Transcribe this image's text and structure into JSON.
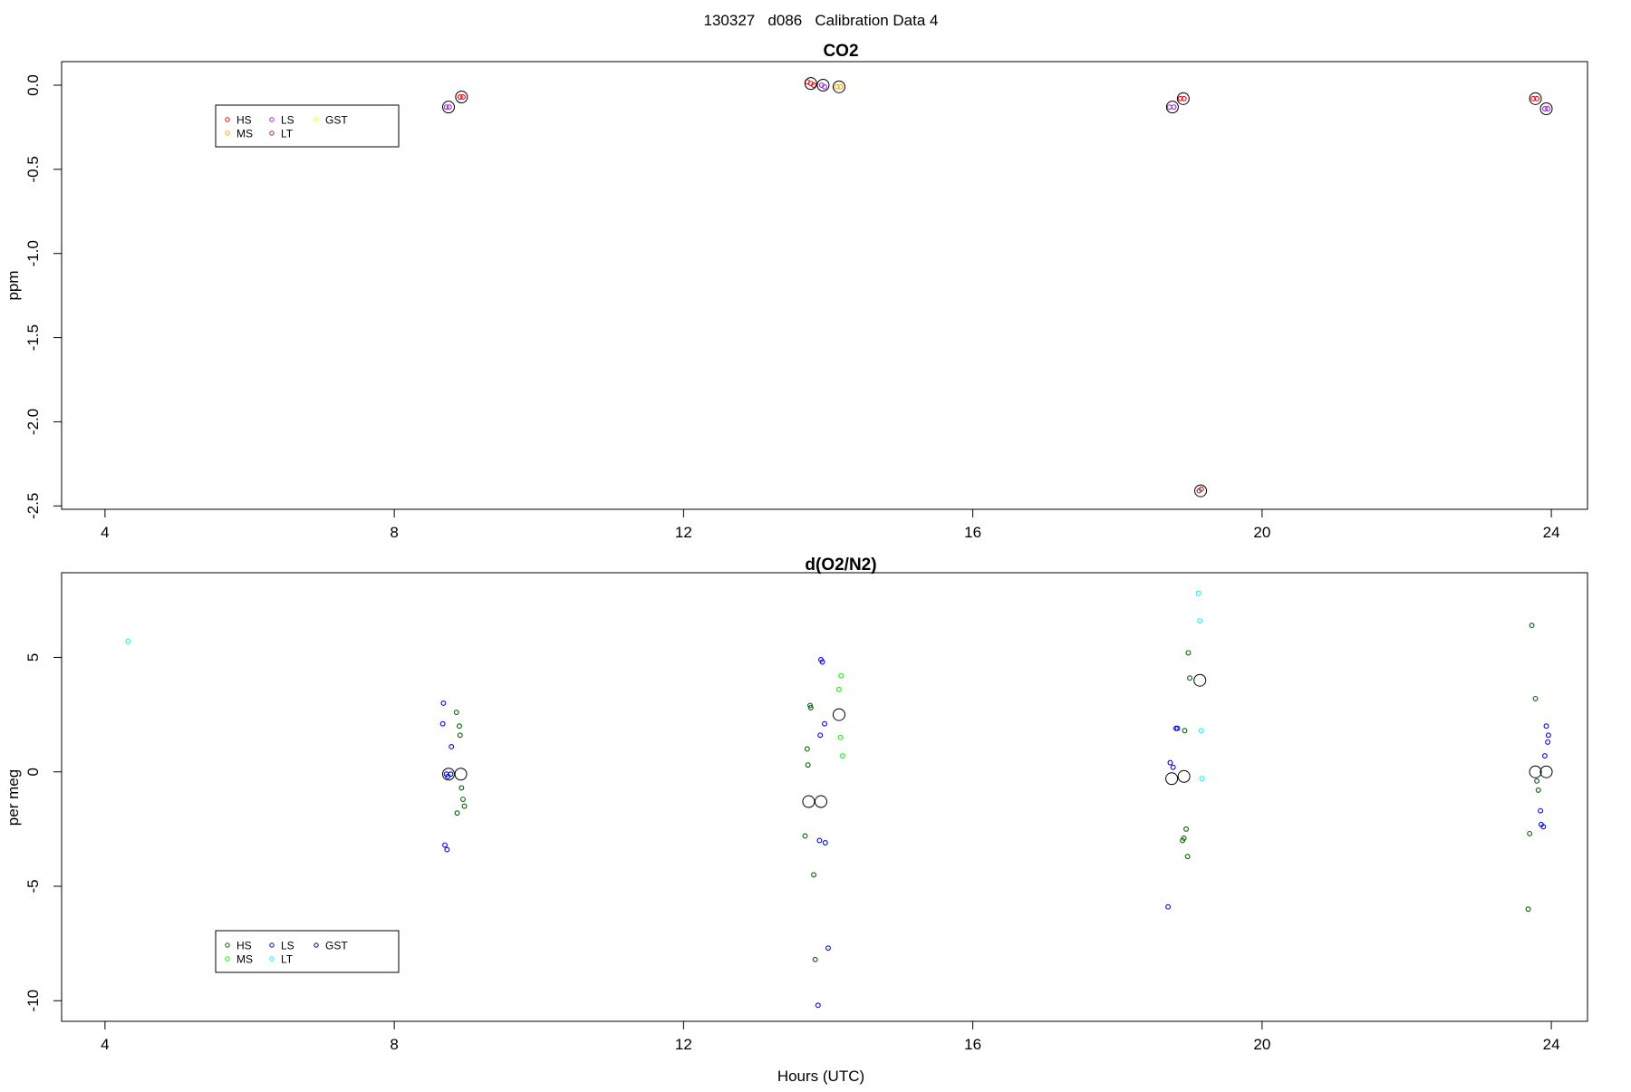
{
  "figure_title": "130327   d086   Calibration Data 4",
  "xlabel": "Hours (UTC)",
  "chart_data": [
    {
      "type": "scatter",
      "title": "CO2",
      "xlabel": "",
      "ylabel": "ppm",
      "xlim": [
        3.4,
        24.5
      ],
      "ylim": [
        -2.52,
        0.14
      ],
      "xticks": [
        4,
        8,
        12,
        16,
        20,
        24
      ],
      "yticks": [
        0.0,
        -0.5,
        -1.0,
        -1.5,
        -2.0,
        -2.5
      ],
      "ytick_labels": [
        "0.0",
        "-0.5",
        "-1.0",
        "-1.5",
        "-2.0",
        "-2.5"
      ],
      "legend_position": "top-left",
      "series": [
        {
          "name": "HS",
          "color": "#ff0000",
          "points": [
            [
              8.91,
              -0.07
            ],
            [
              8.95,
              -0.07
            ],
            [
              13.71,
              0.02
            ],
            [
              13.76,
              0.01
            ],
            [
              13.8,
              0.0
            ],
            [
              18.87,
              -0.08
            ],
            [
              18.92,
              -0.08
            ],
            [
              23.75,
              -0.08
            ],
            [
              23.8,
              -0.08
            ]
          ]
        },
        {
          "name": "MS",
          "color": "#ffa500",
          "points": [
            [
              14.12,
              -0.01
            ],
            [
              14.17,
              -0.01
            ]
          ]
        },
        {
          "name": "LS",
          "color": "#a020f0",
          "points": [
            [
              8.72,
              -0.13
            ],
            [
              8.76,
              -0.13
            ],
            [
              13.91,
              0.0
            ],
            [
              13.95,
              -0.01
            ],
            [
              18.72,
              -0.13
            ],
            [
              18.78,
              -0.13
            ],
            [
              23.91,
              -0.14
            ],
            [
              23.95,
              -0.14
            ]
          ]
        },
        {
          "name": "LT",
          "color": "#a52a2a",
          "points": [
            [
              19.13,
              -2.41
            ],
            [
              19.16,
              -2.4
            ]
          ]
        },
        {
          "name": "GST",
          "color": "#ffff00",
          "points": []
        }
      ],
      "means": [
        [
          8.75,
          -0.13
        ],
        [
          8.93,
          -0.07
        ],
        [
          13.76,
          0.01
        ],
        [
          13.93,
          0.0
        ],
        [
          14.15,
          -0.01
        ],
        [
          18.76,
          -0.13
        ],
        [
          18.91,
          -0.08
        ],
        [
          19.15,
          -2.41
        ],
        [
          23.78,
          -0.08
        ],
        [
          23.93,
          -0.14
        ]
      ]
    },
    {
      "type": "scatter",
      "title": "d(O2/N2)",
      "xlabel": "Hours (UTC)",
      "ylabel": "per meg",
      "xlim": [
        3.4,
        24.5
      ],
      "ylim": [
        -10.9,
        8.7
      ],
      "xticks": [
        4,
        8,
        12,
        16,
        20,
        24
      ],
      "yticks": [
        5,
        0,
        -5,
        -10
      ],
      "ytick_labels": [
        "5",
        "0",
        "-5",
        "-10"
      ],
      "legend_position": "bottom-left",
      "series": [
        {
          "name": "HS",
          "color": "#006400",
          "points": [
            [
              8.86,
              2.6
            ],
            [
              8.9,
              2.0
            ],
            [
              8.91,
              1.6
            ],
            [
              8.93,
              -0.7
            ],
            [
              8.95,
              -1.2
            ],
            [
              8.97,
              -1.5
            ],
            [
              8.87,
              -1.8
            ],
            [
              13.71,
              1.0
            ],
            [
              13.72,
              0.3
            ],
            [
              13.75,
              2.9
            ],
            [
              13.76,
              2.8
            ],
            [
              13.68,
              -2.8
            ],
            [
              13.8,
              -4.5
            ],
            [
              13.82,
              -8.2
            ],
            [
              18.98,
              5.2
            ],
            [
              19.0,
              4.1
            ],
            [
              18.93,
              1.8
            ],
            [
              18.95,
              -2.5
            ],
            [
              18.92,
              -2.9
            ],
            [
              18.9,
              -3.0
            ],
            [
              18.97,
              -3.7
            ],
            [
              23.73,
              6.4
            ],
            [
              23.78,
              3.2
            ],
            [
              23.8,
              -0.4
            ],
            [
              23.82,
              -0.8
            ],
            [
              23.7,
              -2.7
            ],
            [
              23.68,
              -6.0
            ]
          ]
        },
        {
          "name": "MS",
          "color": "#00ff00",
          "points": [
            [
              14.18,
              4.2
            ],
            [
              14.15,
              3.6
            ],
            [
              14.17,
              1.5
            ],
            [
              14.2,
              0.7
            ]
          ]
        },
        {
          "name": "LS",
          "color": "#0000ff",
          "points": [
            [
              8.68,
              3.0
            ],
            [
              8.67,
              2.1
            ],
            [
              8.79,
              1.1
            ],
            [
              8.72,
              -0.1
            ],
            [
              8.74,
              -0.2
            ],
            [
              8.7,
              -3.2
            ],
            [
              8.73,
              -3.4
            ],
            [
              13.9,
              4.9
            ],
            [
              13.92,
              4.8
            ],
            [
              13.95,
              2.1
            ],
            [
              13.89,
              1.6
            ],
            [
              13.88,
              -3.0
            ],
            [
              13.96,
              -3.1
            ],
            [
              14.0,
              -7.7
            ],
            [
              13.86,
              -10.2
            ],
            [
              18.73,
              0.4
            ],
            [
              18.77,
              0.2
            ],
            [
              18.81,
              1.9
            ],
            [
              18.83,
              1.9
            ],
            [
              18.7,
              -5.9
            ],
            [
              23.93,
              2.0
            ],
            [
              23.96,
              1.6
            ],
            [
              23.95,
              1.3
            ],
            [
              23.91,
              0.7
            ],
            [
              23.85,
              -1.7
            ],
            [
              23.86,
              -2.3
            ],
            [
              23.89,
              -2.4
            ]
          ]
        },
        {
          "name": "LT",
          "color": "#00ffff",
          "points": [
            [
              4.32,
              5.7
            ],
            [
              19.12,
              7.8
            ],
            [
              19.14,
              6.6
            ],
            [
              19.16,
              1.8
            ],
            [
              19.17,
              -0.3
            ]
          ]
        },
        {
          "name": "GST",
          "color": "#00008b",
          "points": [
            [
              8.78,
              -0.1
            ]
          ]
        }
      ],
      "means": [
        [
          8.75,
          -0.1
        ],
        [
          8.92,
          -0.1
        ],
        [
          13.73,
          -1.3
        ],
        [
          13.9,
          -1.3
        ],
        [
          14.15,
          2.5
        ],
        [
          18.75,
          -0.3
        ],
        [
          18.92,
          -0.2
        ],
        [
          19.14,
          4.0
        ],
        [
          23.78,
          0.0
        ],
        [
          23.93,
          0.0
        ]
      ]
    }
  ]
}
